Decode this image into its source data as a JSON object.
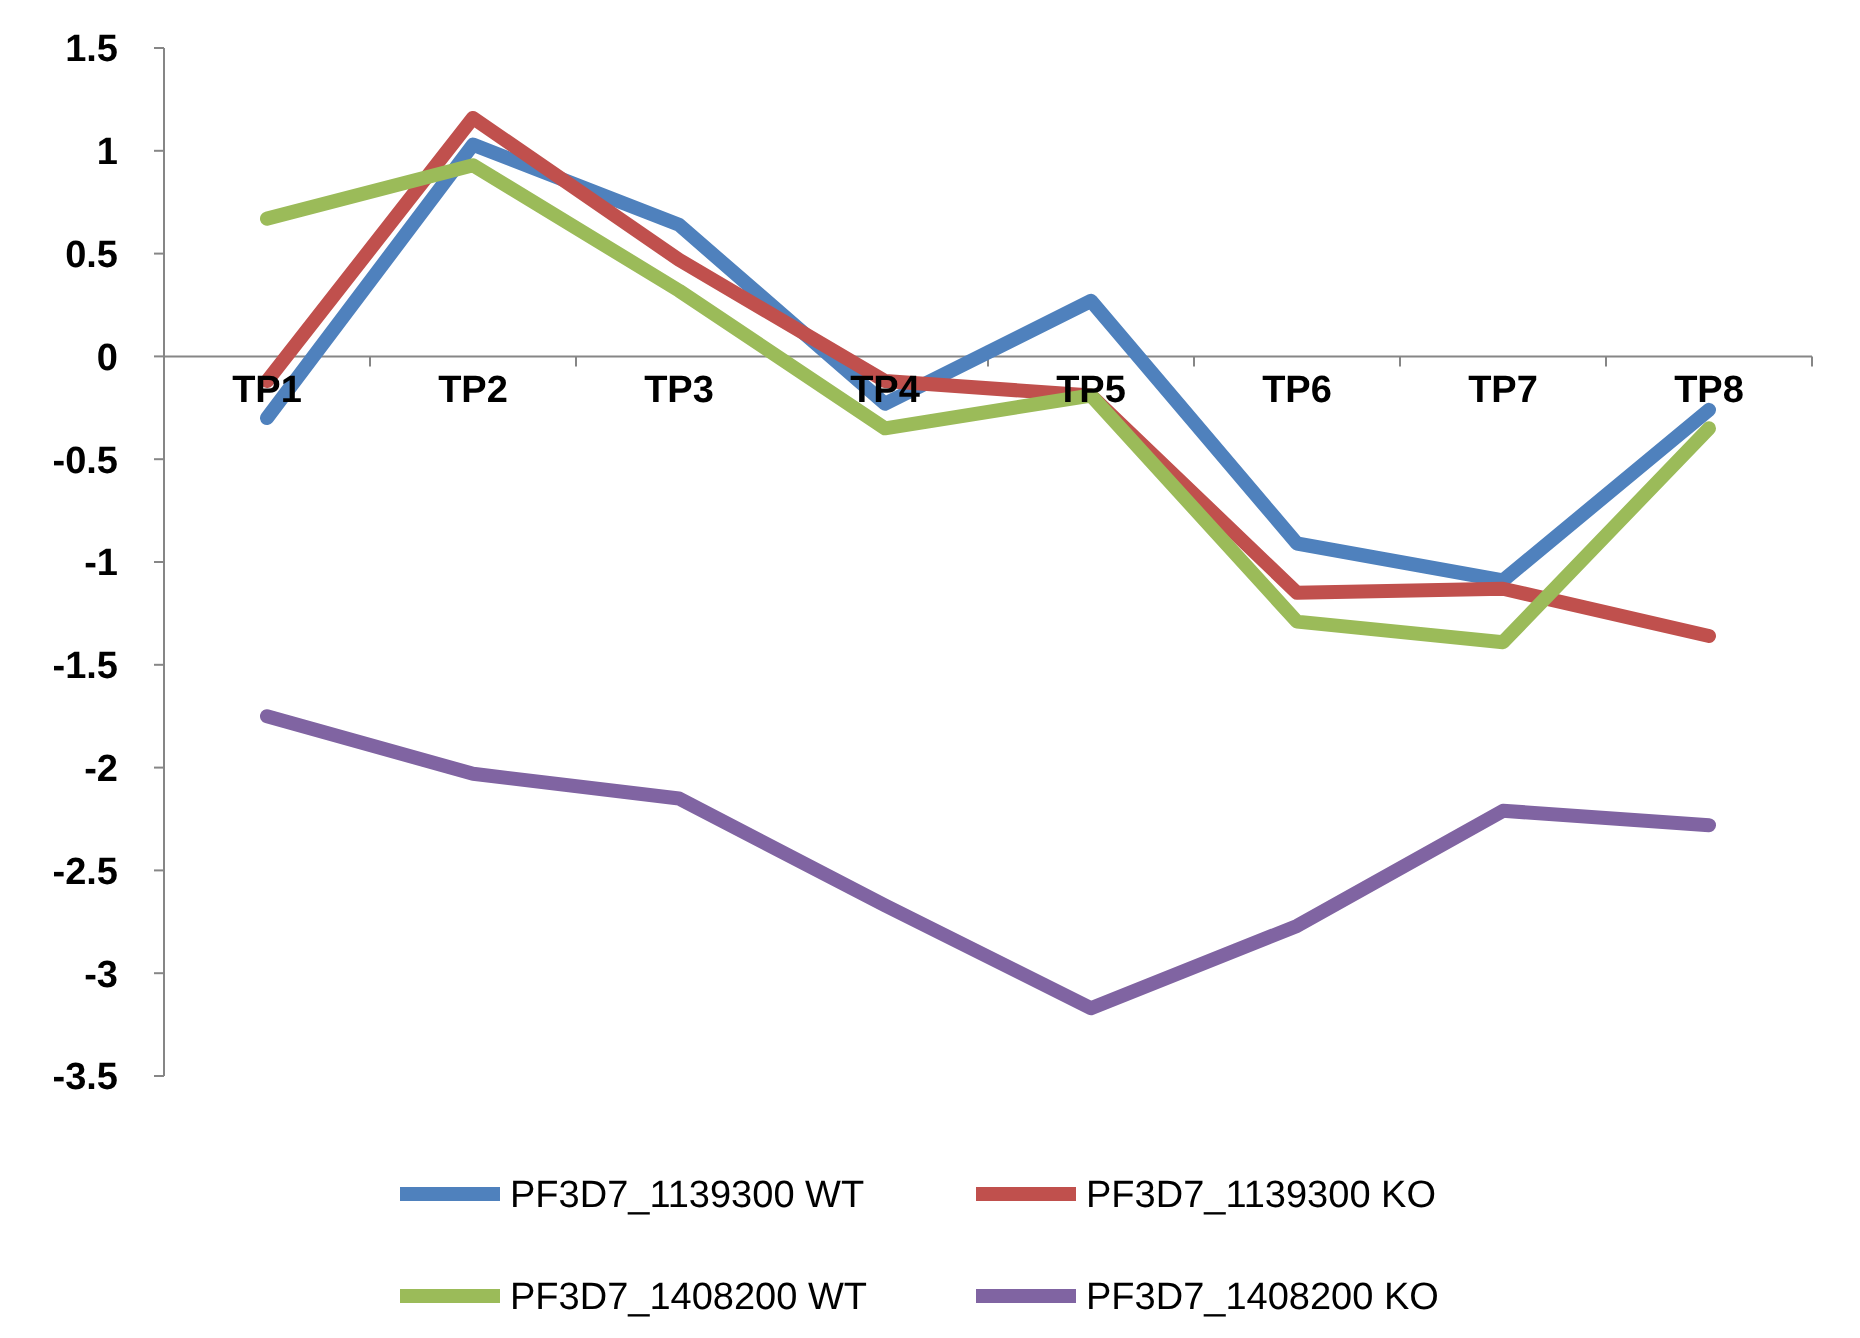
{
  "chart_data": {
    "type": "line",
    "categories": [
      "TP1",
      "TP2",
      "TP3",
      "TP4",
      "TP5",
      "TP6",
      "TP7",
      "TP8"
    ],
    "ylim": [
      -3.5,
      1.5
    ],
    "yticks": [
      {
        "value": -3.5,
        "label": "-3.5"
      },
      {
        "value": -3,
        "label": "-3"
      },
      {
        "value": -2.5,
        "label": "-2.5"
      },
      {
        "value": -2,
        "label": "-2"
      },
      {
        "value": -1.5,
        "label": "-1.5"
      },
      {
        "value": -1,
        "label": "-1"
      },
      {
        "value": -0.5,
        "label": "-0.5"
      },
      {
        "value": 0,
        "label": "0"
      },
      {
        "value": 0.5,
        "label": "0.5"
      },
      {
        "value": 1,
        "label": "1"
      },
      {
        "value": 1.5,
        "label": "1.5"
      }
    ],
    "grid": false,
    "legend": "bottom",
    "marker": "none",
    "line_style": "solid",
    "series": [
      {
        "name": "PF3D7_1139300 WT",
        "color": "#4f81bd",
        "values": [
          -0.3,
          1.03,
          0.64,
          -0.23,
          0.27,
          -0.91,
          -1.09,
          -0.26
        ]
      },
      {
        "name": "PF3D7_1139300 KO",
        "color": "#c0504d",
        "values": [
          -0.12,
          1.16,
          0.47,
          -0.12,
          -0.19,
          -1.15,
          -1.13,
          -1.36
        ]
      },
      {
        "name": "PF3D7_1408200 WT",
        "color": "#9bbb59",
        "values": [
          0.67,
          0.93,
          0.32,
          -0.35,
          -0.19,
          -1.29,
          -1.39,
          -0.35
        ]
      },
      {
        "name": "PF3D7_1408200 KO",
        "color": "#8064a2",
        "values": [
          -1.75,
          -2.03,
          -2.15,
          -2.67,
          -3.17,
          -2.77,
          -2.21,
          -2.28
        ]
      }
    ]
  }
}
